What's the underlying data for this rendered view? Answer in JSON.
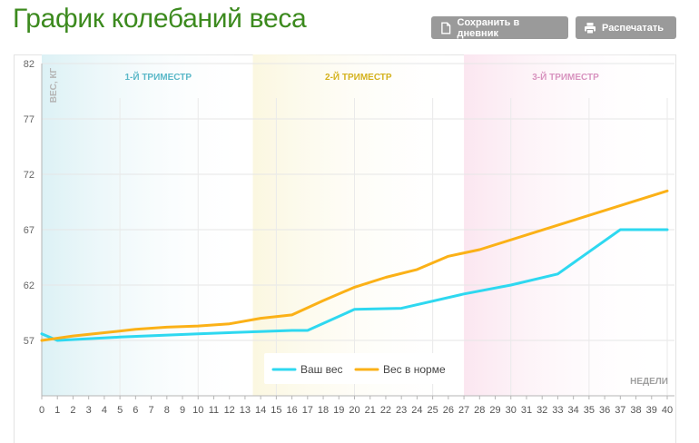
{
  "header": {
    "title": "График колебаний веса",
    "save_button": "Сохранить в дневник",
    "print_button": "Распечатать",
    "save_icon": "document-icon",
    "print_icon": "printer-icon"
  },
  "chart_data": {
    "type": "line",
    "ylabel": "ВЕС, КГ",
    "xlabel": "НЕДЕЛИ",
    "ylim": [
      52,
      82
    ],
    "yticks": [
      57,
      62,
      67,
      72,
      77,
      82
    ],
    "xlim": [
      0,
      40
    ],
    "xticks": [
      0,
      1,
      2,
      3,
      4,
      5,
      6,
      7,
      8,
      9,
      10,
      11,
      12,
      13,
      14,
      15,
      16,
      17,
      18,
      19,
      20,
      21,
      22,
      23,
      24,
      25,
      26,
      27,
      28,
      29,
      30,
      31,
      32,
      33,
      34,
      35,
      36,
      37,
      38,
      39,
      40
    ],
    "grid": true,
    "legend_position": "bottom-center",
    "trimesters": [
      {
        "label": "1-Й ТРИМЕСТР",
        "from": 0,
        "to": 13.5,
        "color": "#5ab8c8",
        "fill": "#e3f3f6"
      },
      {
        "label": "2-Й ТРИМЕСТР",
        "from": 13.5,
        "to": 27,
        "color": "#d4b21e",
        "fill": "#fbf8e6"
      },
      {
        "label": "3-Й ТРИМЕСТР",
        "from": 27,
        "to": 40,
        "color": "#d893bf",
        "fill": "#fbeaf2"
      }
    ],
    "series": [
      {
        "name": "Ваш вес",
        "color": "#2ed8f0",
        "points": [
          [
            0,
            57.6
          ],
          [
            1,
            57.0
          ],
          [
            5,
            57.3
          ],
          [
            10,
            57.6
          ],
          [
            16,
            57.9
          ],
          [
            17,
            57.9
          ],
          [
            20,
            59.8
          ],
          [
            23,
            59.9
          ],
          [
            27,
            61.2
          ],
          [
            30,
            62.0
          ],
          [
            33,
            63.0
          ],
          [
            37,
            67.0
          ],
          [
            40,
            67.0
          ]
        ]
      },
      {
        "name": "Вес в норме",
        "color": "#fbb117",
        "points": [
          [
            0,
            57.0
          ],
          [
            2,
            57.4
          ],
          [
            4,
            57.7
          ],
          [
            6,
            58.0
          ],
          [
            8,
            58.2
          ],
          [
            10,
            58.3
          ],
          [
            12,
            58.5
          ],
          [
            14,
            59.0
          ],
          [
            16,
            59.3
          ],
          [
            18,
            60.6
          ],
          [
            20,
            61.8
          ],
          [
            22,
            62.7
          ],
          [
            24,
            63.4
          ],
          [
            26,
            64.6
          ],
          [
            28,
            65.2
          ],
          [
            40,
            70.5
          ]
        ]
      }
    ]
  }
}
